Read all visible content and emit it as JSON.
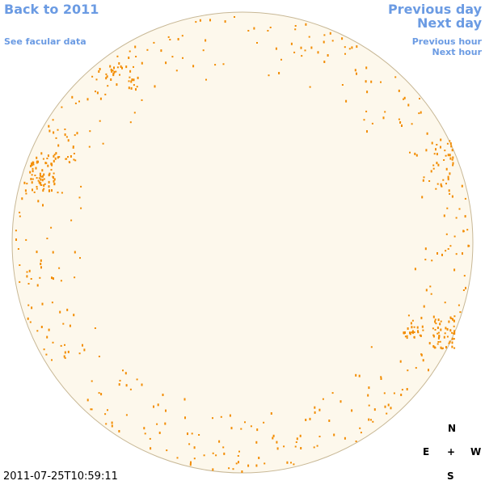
{
  "nav": {
    "back": "Back to 2011",
    "facular": "See facular data",
    "previous_day": "Previous day",
    "next_day": "Next day",
    "previous_hour": "Previous hour",
    "next_hour": "Next hour"
  },
  "timestamp": "2011-07-25T10:59:11",
  "compass": {
    "north": "N",
    "east": "E",
    "center": "+",
    "west": "W",
    "south": "S"
  }
}
